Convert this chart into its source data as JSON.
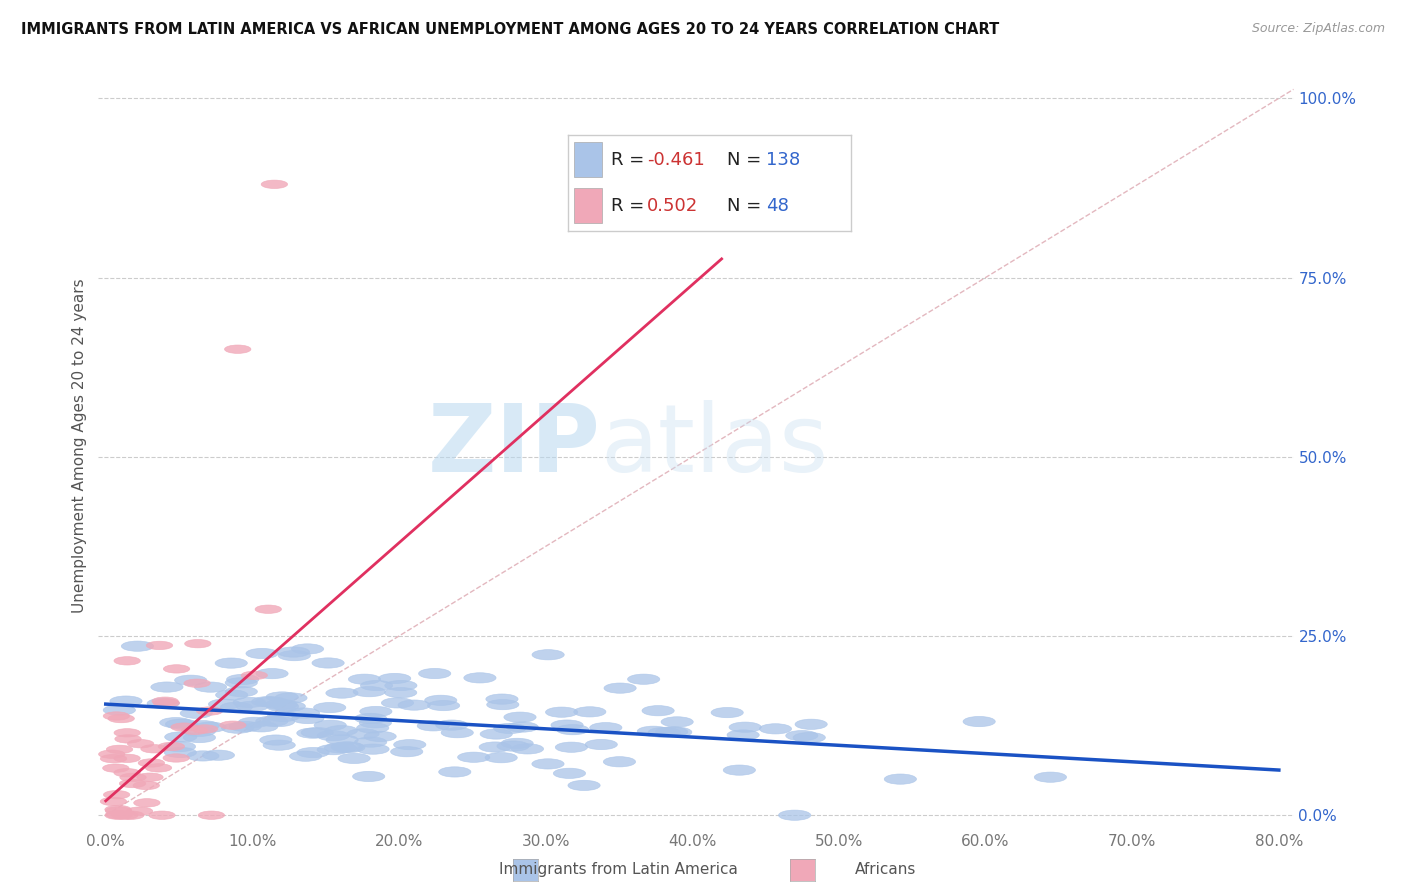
{
  "title": "IMMIGRANTS FROM LATIN AMERICA VS AFRICAN UNEMPLOYMENT AMONG AGES 20 TO 24 YEARS CORRELATION CHART",
  "source": "Source: ZipAtlas.com",
  "ylabel": "Unemployment Among Ages 20 to 24 years",
  "legend_labels": [
    "Immigrants from Latin America",
    "Africans"
  ],
  "legend_R": [
    -0.461,
    0.502
  ],
  "legend_N": [
    138,
    48
  ],
  "blue_color": "#aac4e8",
  "pink_color": "#f0a8b8",
  "blue_line_color": "#1a52c4",
  "pink_line_color": "#e03060",
  "diag_color": "#e0b0b8",
  "watermark_zip": "ZIP",
  "watermark_atlas": "atlas",
  "xlim": [
    -0.005,
    0.81
  ],
  "ylim": [
    -0.02,
    1.05
  ],
  "xticks": [
    0.0,
    0.1,
    0.2,
    0.3,
    0.4,
    0.5,
    0.6,
    0.7,
    0.8
  ],
  "yticks": [
    0.0,
    0.25,
    0.5,
    0.75,
    1.0
  ],
  "xticklabels": [
    "0.0%",
    "10.0%",
    "20.0%",
    "30.0%",
    "40.0%",
    "50.0%",
    "60.0%",
    "70.0%",
    "80.0%"
  ],
  "yticklabels": [
    "0.0%",
    "25.0%",
    "50.0%",
    "75.0%",
    "100.0%"
  ],
  "blue_n": 138,
  "pink_n": 48,
  "blue_intercept": 0.155,
  "blue_slope": -0.115,
  "pink_intercept": 0.02,
  "pink_slope": 1.8,
  "title_fontsize": 10.5,
  "source_fontsize": 9,
  "tick_fontsize": 11,
  "ylabel_fontsize": 11
}
